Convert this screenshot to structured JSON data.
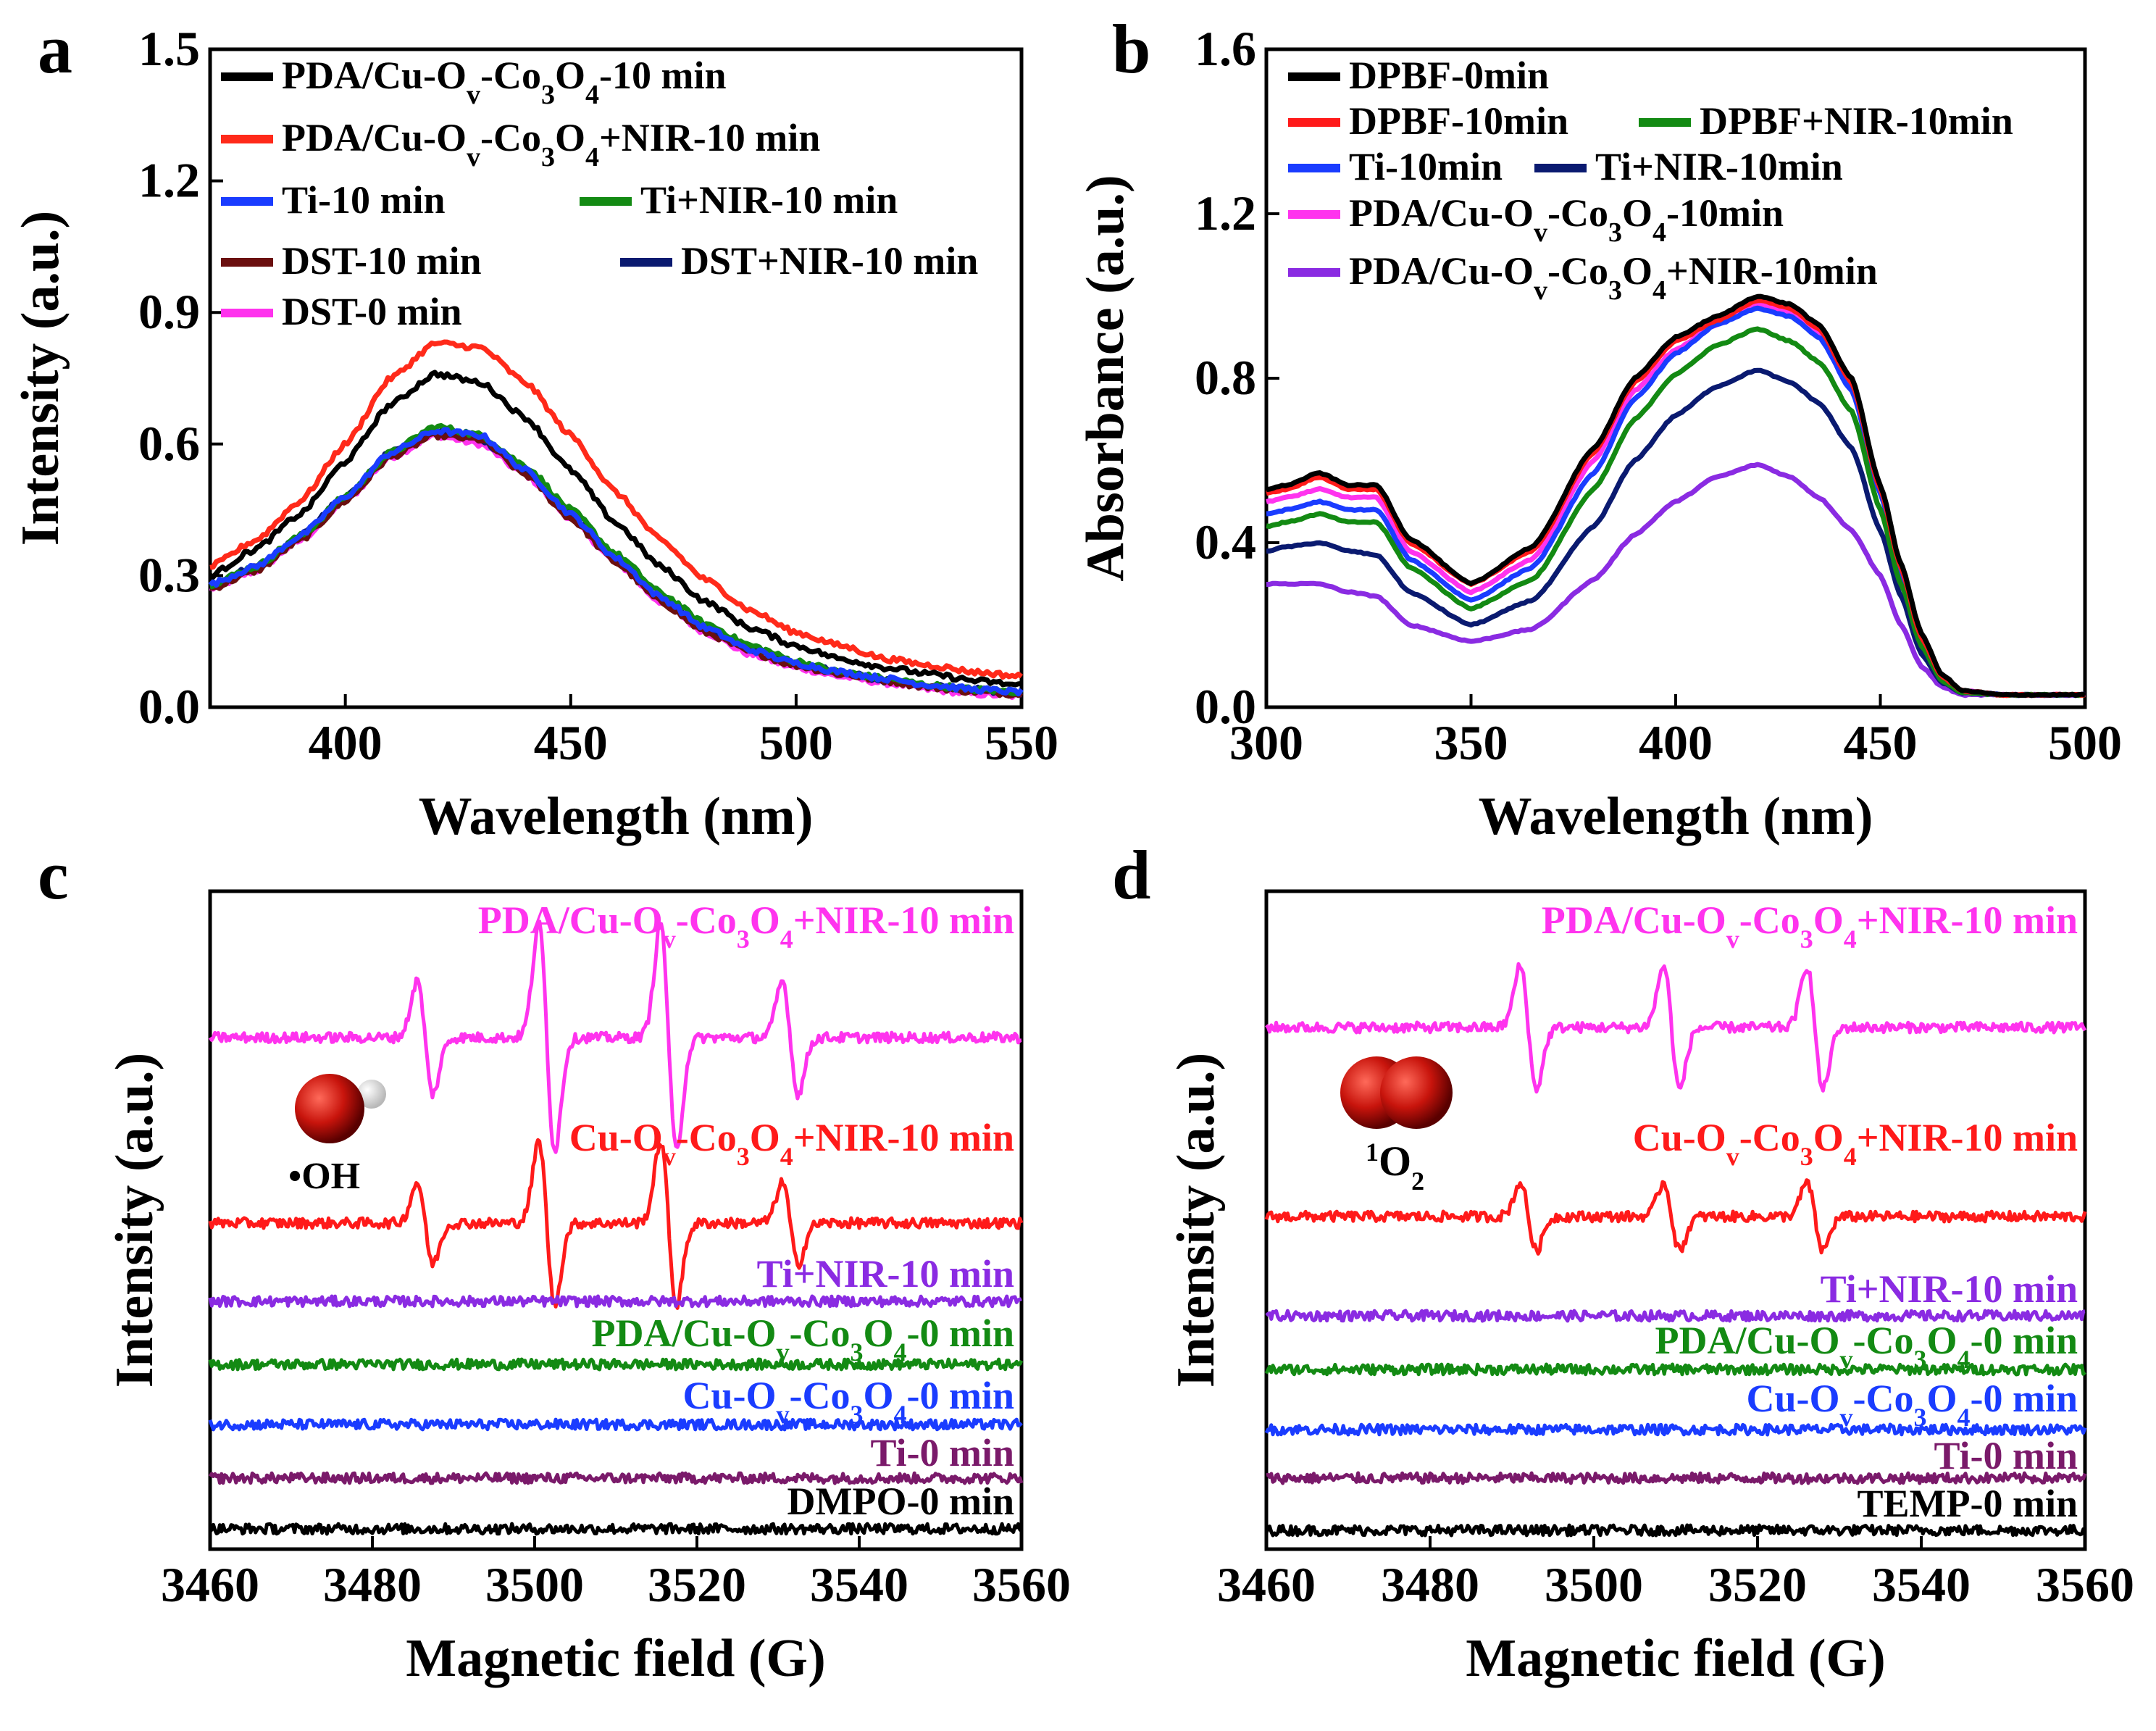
{
  "chart_data": [
    {
      "panel": "a",
      "type": "line",
      "xlabel": "Wavelength (nm)",
      "ylabel": "Intensity (a.u.)",
      "xlim": [
        370,
        550
      ],
      "ylim": [
        0,
        1.5
      ],
      "xticks": [
        400,
        450,
        500,
        550
      ],
      "yticks": [
        "0.0",
        "0.3",
        "0.6",
        "0.9",
        "1.2",
        "1.5"
      ],
      "legend_position": "top-left",
      "series": [
        {
          "name": "PDA/Cu-Ov-Co3O4-10 min",
          "legend_html": "PDA/Cu-O<tspan baseline-shift='sub' font-size='38'>v</tspan>-Co<tspan baseline-shift='sub' font-size='38'>3</tspan>O<tspan baseline-shift='sub' font-size='38'>4</tspan>-10 min",
          "color": "#000000",
          "x": [
            370,
            380,
            390,
            400,
            410,
            420,
            430,
            440,
            450,
            460,
            470,
            480,
            490,
            500,
            510,
            520,
            530,
            540,
            550
          ],
          "y": [
            0.3,
            0.36,
            0.44,
            0.56,
            0.69,
            0.76,
            0.74,
            0.66,
            0.54,
            0.42,
            0.32,
            0.24,
            0.18,
            0.14,
            0.11,
            0.09,
            0.075,
            0.06,
            0.05
          ]
        },
        {
          "name": "PDA/Cu-Ov-Co3O4+NIR-10 min",
          "legend_html": "PDA/Cu-O<tspan baseline-shift='sub' font-size='38'>v</tspan>-Co<tspan baseline-shift='sub' font-size='38'>3</tspan>O<tspan baseline-shift='sub' font-size='38'>4</tspan>+NIR-10 min",
          "color": "#ff2a1a",
          "x": [
            370,
            380,
            390,
            400,
            410,
            420,
            430,
            440,
            450,
            460,
            470,
            480,
            490,
            500,
            510,
            520,
            530,
            540,
            550
          ],
          "y": [
            0.32,
            0.38,
            0.47,
            0.6,
            0.75,
            0.83,
            0.82,
            0.74,
            0.62,
            0.49,
            0.38,
            0.29,
            0.22,
            0.17,
            0.14,
            0.11,
            0.095,
            0.08,
            0.07
          ]
        },
        {
          "name": "Ti-10 min",
          "color": "#1a3cff",
          "x": [
            370,
            380,
            390,
            400,
            410,
            420,
            430,
            440,
            450,
            460,
            470,
            480,
            490,
            500,
            510,
            520,
            530,
            540,
            550
          ],
          "y": [
            0.28,
            0.32,
            0.39,
            0.48,
            0.58,
            0.63,
            0.62,
            0.54,
            0.44,
            0.34,
            0.25,
            0.18,
            0.13,
            0.1,
            0.08,
            0.065,
            0.05,
            0.04,
            0.035
          ]
        },
        {
          "name": "Ti+NIR-10 min",
          "color": "#138a13",
          "x": [
            370,
            380,
            390,
            400,
            410,
            420,
            430,
            440,
            450,
            460,
            470,
            480,
            490,
            500,
            510,
            520,
            530,
            540,
            550
          ],
          "y": [
            0.28,
            0.32,
            0.39,
            0.48,
            0.58,
            0.64,
            0.62,
            0.55,
            0.45,
            0.35,
            0.26,
            0.19,
            0.14,
            0.105,
            0.08,
            0.065,
            0.05,
            0.04,
            0.035
          ]
        },
        {
          "name": "DST-10 min",
          "color": "#6b0f0f",
          "x": [
            370,
            380,
            390,
            400,
            410,
            420,
            430,
            440,
            450,
            460,
            470,
            480,
            490,
            500,
            510,
            520,
            530,
            540,
            550
          ],
          "y": [
            0.27,
            0.31,
            0.38,
            0.47,
            0.57,
            0.62,
            0.61,
            0.53,
            0.43,
            0.33,
            0.24,
            0.17,
            0.125,
            0.095,
            0.075,
            0.06,
            0.045,
            0.035,
            0.03
          ]
        },
        {
          "name": "DST+NIR-10 min",
          "color": "#0a1a70",
          "x": [
            370,
            380,
            390,
            400,
            410,
            420,
            430,
            440,
            450,
            460,
            470,
            480,
            490,
            500,
            510,
            520,
            530,
            540,
            550
          ],
          "y": [
            0.28,
            0.32,
            0.39,
            0.48,
            0.58,
            0.63,
            0.61,
            0.54,
            0.44,
            0.34,
            0.25,
            0.18,
            0.13,
            0.1,
            0.08,
            0.06,
            0.05,
            0.04,
            0.03
          ]
        },
        {
          "name": "DST-0 min",
          "color": "#ff33ee",
          "x": [
            370,
            380,
            390,
            400,
            410,
            420,
            430,
            440,
            450,
            460,
            470,
            480,
            490,
            500,
            510,
            520,
            530,
            540,
            550
          ],
          "y": [
            0.27,
            0.31,
            0.38,
            0.47,
            0.57,
            0.62,
            0.6,
            0.53,
            0.43,
            0.33,
            0.24,
            0.17,
            0.12,
            0.09,
            0.07,
            0.055,
            0.04,
            0.03,
            0.025
          ]
        }
      ]
    },
    {
      "panel": "b",
      "type": "line",
      "xlabel": "Wavelength (nm)",
      "ylabel": "Absorbance (a.u.)",
      "xlim": [
        300,
        500
      ],
      "ylim": [
        0,
        1.6
      ],
      "xticks": [
        300,
        350,
        400,
        450,
        500
      ],
      "yticks": [
        "0.0",
        "0.4",
        "0.8",
        "1.2",
        "1.6"
      ],
      "legend_position": "top-left",
      "series": [
        {
          "name": "DPBF-0min",
          "color": "#000000",
          "x": [
            300,
            305,
            313,
            320,
            327,
            335,
            350,
            365,
            380,
            390,
            400,
            410,
            420,
            428,
            435,
            443,
            450,
            455,
            460,
            465,
            470,
            480,
            500
          ],
          "y": [
            0.53,
            0.54,
            0.57,
            0.54,
            0.54,
            0.41,
            0.3,
            0.39,
            0.63,
            0.8,
            0.9,
            0.95,
            1.0,
            0.98,
            0.93,
            0.8,
            0.54,
            0.35,
            0.18,
            0.08,
            0.04,
            0.03,
            0.03
          ]
        },
        {
          "name": "DPBF-10min",
          "color": "#ff1a1a",
          "x": [
            300,
            305,
            313,
            320,
            327,
            335,
            350,
            365,
            380,
            390,
            400,
            410,
            420,
            428,
            435,
            443,
            450,
            455,
            460,
            465,
            470,
            480,
            500
          ],
          "y": [
            0.52,
            0.53,
            0.56,
            0.53,
            0.53,
            0.4,
            0.3,
            0.38,
            0.62,
            0.79,
            0.89,
            0.94,
            0.99,
            0.97,
            0.92,
            0.79,
            0.53,
            0.34,
            0.17,
            0.075,
            0.04,
            0.03,
            0.03
          ]
        },
        {
          "name": "DPBF+NIR-10min",
          "color": "#138a13",
          "x": [
            300,
            305,
            313,
            320,
            327,
            335,
            350,
            365,
            380,
            390,
            400,
            410,
            420,
            428,
            435,
            443,
            450,
            455,
            460,
            465,
            470,
            480,
            500
          ],
          "y": [
            0.44,
            0.45,
            0.47,
            0.45,
            0.45,
            0.34,
            0.24,
            0.31,
            0.53,
            0.7,
            0.81,
            0.88,
            0.92,
            0.89,
            0.84,
            0.72,
            0.48,
            0.3,
            0.15,
            0.065,
            0.035,
            0.03,
            0.03
          ]
        },
        {
          "name": "Ti-10min",
          "color": "#1a3cff",
          "x": [
            300,
            305,
            313,
            320,
            327,
            335,
            350,
            365,
            380,
            390,
            400,
            410,
            420,
            428,
            435,
            443,
            450,
            455,
            460,
            465,
            470,
            480,
            500
          ],
          "y": [
            0.47,
            0.48,
            0.5,
            0.48,
            0.48,
            0.36,
            0.26,
            0.34,
            0.57,
            0.75,
            0.86,
            0.93,
            0.97,
            0.95,
            0.9,
            0.77,
            0.52,
            0.33,
            0.16,
            0.07,
            0.04,
            0.03,
            0.03
          ]
        },
        {
          "name": "Ti+NIR-10min",
          "color": "#0a1a70",
          "x": [
            300,
            305,
            313,
            320,
            327,
            335,
            350,
            365,
            380,
            390,
            400,
            410,
            420,
            428,
            435,
            443,
            450,
            455,
            460,
            465,
            470,
            480,
            500
          ],
          "y": [
            0.38,
            0.39,
            0.4,
            0.38,
            0.37,
            0.28,
            0.2,
            0.26,
            0.44,
            0.6,
            0.71,
            0.78,
            0.82,
            0.79,
            0.74,
            0.63,
            0.43,
            0.27,
            0.13,
            0.06,
            0.035,
            0.03,
            0.03
          ]
        },
        {
          "name": "PDA/Cu-Ov-Co3O4-10min",
          "legend_html": "PDA/Cu-O<tspan baseline-shift='sub' font-size='38'>v</tspan>-Co<tspan baseline-shift='sub' font-size='38'>3</tspan>O<tspan baseline-shift='sub' font-size='38'>4</tspan>-10min",
          "color": "#ff33ee",
          "x": [
            300,
            305,
            313,
            320,
            327,
            335,
            350,
            365,
            380,
            390,
            400,
            410,
            420,
            428,
            435,
            443,
            450,
            455,
            460,
            465,
            470,
            480,
            500
          ],
          "y": [
            0.5,
            0.51,
            0.53,
            0.51,
            0.51,
            0.38,
            0.28,
            0.36,
            0.6,
            0.77,
            0.87,
            0.93,
            0.98,
            0.96,
            0.91,
            0.78,
            0.53,
            0.34,
            0.17,
            0.075,
            0.04,
            0.03,
            0.03
          ]
        },
        {
          "name": "PDA/Cu-Ov-Co3O4+NIR-10min",
          "legend_html": "PDA/Cu-O<tspan baseline-shift='sub' font-size='38'>v</tspan>-Co<tspan baseline-shift='sub' font-size='38'>3</tspan>O<tspan baseline-shift='sub' font-size='38'>4</tspan>+NIR-10min",
          "color": "#8a2be2",
          "x": [
            300,
            305,
            313,
            320,
            327,
            335,
            350,
            365,
            380,
            390,
            400,
            410,
            420,
            428,
            435,
            443,
            450,
            455,
            460,
            465,
            470,
            480,
            500
          ],
          "y": [
            0.3,
            0.3,
            0.3,
            0.28,
            0.27,
            0.2,
            0.16,
            0.19,
            0.31,
            0.42,
            0.5,
            0.56,
            0.59,
            0.56,
            0.51,
            0.43,
            0.32,
            0.2,
            0.1,
            0.05,
            0.03,
            0.03,
            0.03
          ]
        }
      ]
    },
    {
      "panel": "c",
      "type": "line",
      "xlabel": "Magnetic field (G)",
      "ylabel": "Intensity (a.u.)",
      "xlim": [
        3460,
        3560
      ],
      "xticks": [
        3460,
        3480,
        3500,
        3520,
        3540,
        3560
      ],
      "annotation": "•OH",
      "peak_fields": [
        3486.5,
        3501.5,
        3516.5,
        3531.5
      ],
      "peak_ratio": [
        1,
        2,
        2,
        1
      ],
      "series": [
        {
          "name": "PDA/Cu-Ov-Co3O4+NIR-10 min",
          "label_html": "PDA/Cu-O<tspan baseline-shift='sub' font-size='36'>v</tspan>-Co<tspan baseline-shift='sub' font-size='36'>3</tspan>O<tspan baseline-shift='sub' font-size='36'>4</tspan>+NIR-10 min",
          "color": "#ff33ee",
          "amp": 1.0
        },
        {
          "name": "Cu-Ov-Co3O4+NIR-10 min",
          "label_html": "Cu-O<tspan baseline-shift='sub' font-size='36'>v</tspan>-Co<tspan baseline-shift='sub' font-size='36'>3</tspan>O<tspan baseline-shift='sub' font-size='36'>4</tspan>+NIR-10 min",
          "color": "#ff1a1a",
          "amp": 0.72
        },
        {
          "name": "Ti+NIR-10 min",
          "color": "#8a2be2",
          "amp": 0
        },
        {
          "name": "PDA/Cu-Ov-Co3O4-0 min",
          "label_html": "PDA/Cu-O<tspan baseline-shift='sub' font-size='36'>v</tspan>-Co<tspan baseline-shift='sub' font-size='36'>3</tspan>O<tspan baseline-shift='sub' font-size='36'>4</tspan>-0 min",
          "color": "#138a13",
          "amp": 0
        },
        {
          "name": "Cu-Ov-Co3O4-0 min",
          "label_html": "Cu-O<tspan baseline-shift='sub' font-size='36'>v</tspan>-Co<tspan baseline-shift='sub' font-size='36'>3</tspan>O<tspan baseline-shift='sub' font-size='36'>4</tspan>-0 min",
          "color": "#1a3cff",
          "amp": 0
        },
        {
          "name": "Ti-0 min",
          "color": "#7a1a6a",
          "amp": 0
        },
        {
          "name": "DMPO-0 min",
          "color": "#000000",
          "amp": 0
        }
      ]
    },
    {
      "panel": "d",
      "type": "line",
      "xlabel": "Magnetic field (G)",
      "ylabel": "Intensity (a.u.)",
      "xlim": [
        3460,
        3560
      ],
      "xticks": [
        3460,
        3480,
        3500,
        3520,
        3540,
        3560
      ],
      "annotation": "1O2",
      "peak_fields": [
        3492,
        3509.5,
        3527
      ],
      "peak_ratio": [
        1,
        1,
        1
      ],
      "series": [
        {
          "name": "PDA/Cu-Ov-Co3O4+NIR-10 min",
          "label_html": "PDA/Cu-O<tspan baseline-shift='sub' font-size='36'>v</tspan>-Co<tspan baseline-shift='sub' font-size='36'>3</tspan>O<tspan baseline-shift='sub' font-size='36'>4</tspan>+NIR-10 min",
          "color": "#ff33ee",
          "amp": 1.0
        },
        {
          "name": "Cu-Ov-Co3O4+NIR-10 min",
          "label_html": "Cu-O<tspan baseline-shift='sub' font-size='36'>v</tspan>-Co<tspan baseline-shift='sub' font-size='36'>3</tspan>O<tspan baseline-shift='sub' font-size='36'>4</tspan>+NIR-10 min",
          "color": "#ff1a1a",
          "amp": 0.55
        },
        {
          "name": "Ti+NIR-10 min",
          "color": "#8a2be2",
          "amp": 0
        },
        {
          "name": "PDA/Cu-Ov-Co3O4-0 min",
          "label_html": "PDA/Cu-O<tspan baseline-shift='sub' font-size='36'>v</tspan>-Co<tspan baseline-shift='sub' font-size='36'>3</tspan>O<tspan baseline-shift='sub' font-size='36'>4</tspan>-0 min",
          "color": "#138a13",
          "amp": 0
        },
        {
          "name": "Cu-Ov-Co3O4-0 min",
          "label_html": "Cu-O<tspan baseline-shift='sub' font-size='36'>v</tspan>-Co<tspan baseline-shift='sub' font-size='36'>3</tspan>O<tspan baseline-shift='sub' font-size='36'>4</tspan>-0 min",
          "color": "#1a3cff",
          "amp": 0
        },
        {
          "name": "Ti-0 min",
          "color": "#7a1a6a",
          "amp": 0
        },
        {
          "name": "TEMP-0 min",
          "color": "#000000",
          "amp": 0
        }
      ]
    }
  ]
}
